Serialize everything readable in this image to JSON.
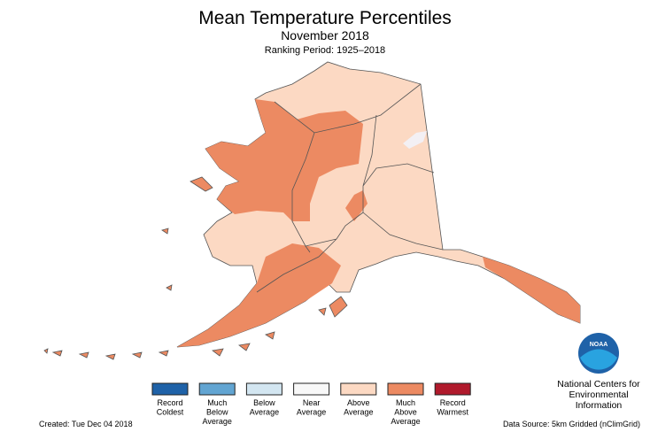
{
  "header": {
    "title": "Mean Temperature Percentiles",
    "subtitle": "November 2018",
    "period": "Ranking Period: 1925–2018"
  },
  "legend": [
    {
      "lines": [
        "Record",
        "Coldest"
      ],
      "color": "#1f62a8"
    },
    {
      "lines": [
        "Much",
        "Below",
        "Average"
      ],
      "color": "#62a5d2"
    },
    {
      "lines": [
        "Below",
        "Average"
      ],
      "color": "#d3e6f1"
    },
    {
      "lines": [
        "Near",
        "Average"
      ],
      "color": "#f8f8f8"
    },
    {
      "lines": [
        "Above",
        "Average"
      ],
      "color": "#fcd9c3"
    },
    {
      "lines": [
        "Much",
        "Above",
        "Average"
      ],
      "color": "#ec8a62"
    },
    {
      "lines": [
        "Record",
        "Warmest"
      ],
      "color": "#b01a2c"
    }
  ],
  "logo": {
    "mark": "NOAA",
    "lines": [
      "National Centers for",
      "Environmental",
      "Information"
    ]
  },
  "footer": {
    "created": "Created: Tue Dec 04 2018",
    "source": "Data Source: 5km Gridded (nClimGrid)"
  }
}
